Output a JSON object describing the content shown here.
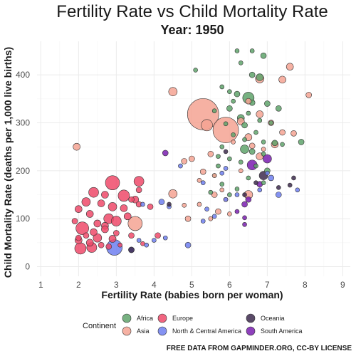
{
  "chart_data": {
    "type": "scatter",
    "title": "Fertility Rate vs Child Mortality Rate",
    "subtitle": "Year: 1950",
    "xlabel": "Fertility Rate (babies born per woman)",
    "ylabel": "Child Mortality Rate (deaths per 1,000 live births)",
    "xlim": [
      0.9,
      9.2
    ],
    "ylim": [
      -20,
      470
    ],
    "x_ticks": [
      1,
      2,
      3,
      4,
      5,
      6,
      7,
      8,
      9
    ],
    "y_ticks": [
      0,
      100,
      200,
      300,
      400
    ],
    "grid": true,
    "legend": {
      "title": "Continent",
      "placement": "bottom",
      "entries": [
        {
          "name": "Africa",
          "color": "#5fa36b"
        },
        {
          "name": "Asia",
          "color": "#f4a393"
        },
        {
          "name": "Europe",
          "color": "#ef4a6a"
        },
        {
          "name": "North & Central America",
          "color": "#6e7ff0"
        },
        {
          "name": "Oceania",
          "color": "#3d2a4d"
        },
        {
          "name": "South America",
          "color": "#7a1fb0"
        }
      ]
    },
    "series": [
      {
        "name": "Africa",
        "points": [
          [
            6.2,
            450
          ],
          [
            6.6,
            450
          ],
          [
            6.9,
            440
          ],
          [
            5.1,
            410
          ],
          [
            6.3,
            425
          ],
          [
            6.6,
            400
          ],
          [
            6.8,
            395
          ],
          [
            5.8,
            375
          ],
          [
            6.0,
            365
          ],
          [
            6.2,
            360
          ],
          [
            6.5,
            352
          ],
          [
            6.1,
            345
          ],
          [
            6.6,
            342
          ],
          [
            7.0,
            340
          ],
          [
            6.0,
            330
          ],
          [
            5.6,
            325
          ],
          [
            6.5,
            320
          ],
          [
            7.3,
            330
          ],
          [
            6.3,
            310
          ],
          [
            6.8,
            305
          ],
          [
            7.1,
            300
          ],
          [
            5.9,
            298
          ],
          [
            6.4,
            295
          ],
          [
            6.7,
            280
          ],
          [
            6.1,
            275
          ],
          [
            6.4,
            265
          ],
          [
            6.9,
            260
          ],
          [
            7.2,
            258
          ],
          [
            5.8,
            250
          ],
          [
            6.4,
            245
          ],
          [
            6.6,
            240
          ],
          [
            6.9,
            235
          ],
          [
            7.4,
            255
          ],
          [
            7.9,
            260
          ],
          [
            5.7,
            230
          ],
          [
            6.0,
            225
          ],
          [
            6.3,
            218
          ],
          [
            6.7,
            210
          ],
          [
            7.0,
            200
          ],
          [
            5.6,
            190
          ],
          [
            6.5,
            185
          ],
          [
            6.9,
            175
          ],
          [
            5.8,
            172
          ],
          [
            6.2,
            162
          ],
          [
            5.5,
            155
          ],
          [
            6.0,
            150
          ],
          [
            5.7,
            210
          ]
        ],
        "sizes": [
          3,
          3,
          4,
          3,
          3,
          4,
          5,
          3,
          3,
          4,
          8,
          3,
          4,
          4,
          4,
          3,
          3,
          4,
          5,
          3,
          3,
          3,
          4,
          3,
          3,
          3,
          3,
          4,
          3,
          6,
          4,
          3,
          3,
          4,
          3,
          3,
          3,
          3,
          4,
          3,
          3,
          3,
          3,
          3,
          3,
          3,
          3
        ]
      },
      {
        "name": "Asia",
        "points": [
          [
            5.3,
            318
          ],
          [
            5.9,
            285
          ],
          [
            5.4,
            295
          ],
          [
            4.5,
            365
          ],
          [
            7.6,
            417
          ],
          [
            7.4,
            390
          ],
          [
            8.1,
            358
          ],
          [
            6.8,
            392
          ],
          [
            6.5,
            345
          ],
          [
            6.8,
            318
          ],
          [
            6.3,
            303
          ],
          [
            7.1,
            300
          ],
          [
            7.4,
            280
          ],
          [
            6.5,
            270
          ],
          [
            6.1,
            260
          ],
          [
            7.7,
            278
          ],
          [
            7.2,
            255
          ],
          [
            6.8,
            230
          ],
          [
            5.5,
            235
          ],
          [
            5.0,
            225
          ],
          [
            4.8,
            220
          ],
          [
            5.3,
            198
          ],
          [
            5.6,
            190
          ],
          [
            5.2,
            180
          ],
          [
            4.5,
            152
          ],
          [
            5.6,
            150
          ],
          [
            5.9,
            140
          ],
          [
            6.5,
            150
          ],
          [
            4.8,
            128
          ],
          [
            5.7,
            115
          ],
          [
            5.5,
            100
          ],
          [
            4.9,
            100
          ],
          [
            3.5,
            90
          ],
          [
            5.2,
            130
          ],
          [
            5.8,
            160
          ],
          [
            6.0,
            110
          ],
          [
            6.6,
            252
          ],
          [
            1.95,
            250
          ],
          [
            6.3,
            200
          ],
          [
            6.9,
            245
          ]
        ],
        "sizes": [
          22,
          18,
          8,
          6,
          5,
          5,
          4,
          6,
          4,
          5,
          5,
          4,
          4,
          5,
          3,
          4,
          5,
          5,
          4,
          4,
          4,
          4,
          3,
          3,
          6,
          4,
          3,
          6,
          3,
          4,
          3,
          4,
          10,
          3,
          3,
          3,
          4,
          5,
          3,
          3
        ]
      },
      {
        "name": "Europe",
        "points": [
          [
            2.9,
            175
          ],
          [
            3.6,
            178
          ],
          [
            2.4,
            155
          ],
          [
            2.7,
            150
          ],
          [
            3.2,
            148
          ],
          [
            3.5,
            140
          ],
          [
            2.2,
            135
          ],
          [
            2.6,
            132
          ],
          [
            2.9,
            125
          ],
          [
            3.2,
            122
          ],
          [
            3.6,
            130
          ],
          [
            2.0,
            120
          ],
          [
            2.3,
            110
          ],
          [
            2.8,
            100
          ],
          [
            2.5,
            90
          ],
          [
            2.7,
            85
          ],
          [
            3.0,
            95
          ],
          [
            3.3,
            105
          ],
          [
            1.9,
            95
          ],
          [
            2.1,
            80
          ],
          [
            2.4,
            72
          ],
          [
            2.7,
            78
          ],
          [
            3.0,
            70
          ],
          [
            2.2,
            65
          ],
          [
            2.5,
            60
          ],
          [
            2.9,
            58
          ],
          [
            3.4,
            65
          ],
          [
            2.0,
            55
          ],
          [
            2.3,
            50
          ],
          [
            2.6,
            45
          ],
          [
            3.1,
            45
          ],
          [
            2.05,
            38
          ],
          [
            2.35,
            40
          ],
          [
            2.8,
            42
          ],
          [
            2.0,
            60
          ],
          [
            3.4,
            140
          ],
          [
            3.6,
            160
          ],
          [
            4.1,
            65
          ],
          [
            3.7,
            48
          ],
          [
            3.9,
            125
          ]
        ],
        "sizes": [
          10,
          7,
          7,
          5,
          8,
          5,
          6,
          5,
          6,
          5,
          4,
          5,
          5,
          7,
          5,
          5,
          7,
          5,
          4,
          9,
          5,
          5,
          4,
          4,
          6,
          5,
          4,
          5,
          5,
          4,
          3,
          8,
          7,
          4,
          4,
          4,
          4,
          4,
          3,
          4
        ]
      },
      {
        "name": "North & Central America",
        "points": [
          [
            2.95,
            40
          ],
          [
            3.4,
            35
          ],
          [
            3.8,
            45
          ],
          [
            4.0,
            55
          ],
          [
            4.3,
            60
          ],
          [
            4.9,
            45
          ],
          [
            5.3,
            95
          ],
          [
            5.6,
            105
          ],
          [
            5.4,
            120
          ],
          [
            5.9,
            140
          ],
          [
            6.2,
            150
          ],
          [
            6.8,
            160
          ],
          [
            7.3,
            150
          ],
          [
            7.0,
            195
          ],
          [
            7.1,
            185
          ],
          [
            4.4,
            125
          ],
          [
            4.2,
            135
          ],
          [
            4.7,
            210
          ],
          [
            5.9,
            205
          ],
          [
            5.8,
            195
          ],
          [
            5.3,
            175
          ],
          [
            3.6,
            55
          ],
          [
            7.8,
            160
          ],
          [
            3.7,
            130
          ]
        ],
        "sizes": [
          11,
          4,
          3,
          3,
          3,
          4,
          3,
          3,
          3,
          3,
          3,
          3,
          4,
          3,
          4,
          3,
          4,
          3,
          3,
          3,
          3,
          3,
          3,
          3
        ]
      },
      {
        "name": "Oceania",
        "points": [
          [
            3.4,
            35
          ],
          [
            6.9,
            190
          ],
          [
            5.9,
            240
          ],
          [
            6.7,
            175
          ],
          [
            7.3,
            165
          ],
          [
            7.6,
            170
          ],
          [
            7.7,
            185
          ],
          [
            6.4,
            150
          ],
          [
            4.4,
            130
          ]
        ],
        "sizes": [
          4,
          6,
          3,
          3,
          3,
          3,
          3,
          3,
          3
        ]
      },
      {
        "name": "South America",
        "points": [
          [
            6.6,
            212
          ],
          [
            7.0,
            225
          ],
          [
            6.8,
            172
          ],
          [
            6.5,
            140
          ],
          [
            6.4,
            130
          ],
          [
            6.4,
            102
          ],
          [
            6.4,
            88
          ],
          [
            4.3,
            237
          ],
          [
            6.2,
            115
          ]
        ],
        "sizes": [
          7,
          6,
          4,
          4,
          4,
          3,
          3,
          4,
          3
        ]
      }
    ],
    "caption": "FREE DATA FROM GAPMINDER.ORG, CC-BY LICENSE"
  }
}
